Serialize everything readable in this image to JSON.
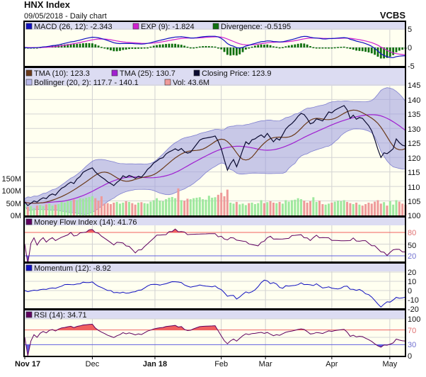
{
  "header": {
    "title": "HNX Index",
    "subtitle": "09/05/2018 - Daily chart",
    "brand": "VCBS"
  },
  "colors": {
    "macd": "#1010c0",
    "exp": "#d020d0",
    "divergence": "#107010",
    "tma10": "#6b3a1a",
    "tma25": "#a020d0",
    "close": "#0a0a30",
    "bollinger": "#9a9ae0",
    "vol_up": "#9ee89e",
    "vol_down": "#ee9a9a",
    "mfi": "#600060",
    "momentum": "#1010c0",
    "rsi": "#600060",
    "overbought": "#f06060",
    "oversold": "#6060e0",
    "band": "#dcdcf2",
    "plot_bg": "#fffff0"
  },
  "legends": {
    "macd": "MACD (26, 12): -2.343",
    "exp": "EXP (9): -1.824",
    "divergence": "Divergence: -0.5195",
    "tma10": "TMA (10): 123.3",
    "tma25": "TMA (25): 130.7",
    "close": "Closing Price: 123.9",
    "bollinger": "Bollinger (20, 2): 117.7 - 140.1",
    "vol": "Vol: 43.6M",
    "mfi": "Money Flow Index (14): 41.76",
    "momentum": "Momentum (12): -8.92",
    "rsi": "RSI (14): 34.71"
  },
  "axes": {
    "macd_ticks": [
      "5",
      "0",
      "-5"
    ],
    "price_ticks": [
      "145",
      "140",
      "135",
      "130",
      "125",
      "120",
      "115",
      "110",
      "105",
      "100"
    ],
    "volume_ticks": [
      "150M",
      "100M",
      "50M",
      "0M"
    ],
    "mfi_ticks": [
      "80",
      "50",
      "20"
    ],
    "momentum_ticks": [
      "20",
      "10",
      "0",
      "-10",
      "-20"
    ],
    "rsi_ticks": [
      "100",
      "70",
      "30",
      "0"
    ],
    "x_ticks": [
      {
        "label": "Nov 17",
        "index": 0,
        "bold": true
      },
      {
        "label": "Dec",
        "index": 22,
        "bold": false
      },
      {
        "label": "Jan 18",
        "index": 42.4,
        "bold": true
      },
      {
        "label": "Feb",
        "index": 64,
        "bold": false
      },
      {
        "label": "Mar",
        "index": 78.4,
        "bold": false
      },
      {
        "label": "Apr",
        "index": 100,
        "bold": false
      },
      {
        "label": "May",
        "index": 118.9,
        "bold": false
      }
    ]
  },
  "chart_data": {
    "type": "line",
    "title": "HNX Index",
    "price_range": [
      100,
      145
    ],
    "volume_range_millions": [
      0,
      150
    ],
    "mfi_levels": [
      80,
      20
    ],
    "rsi_levels": [
      70,
      30
    ],
    "grid": true,
    "close": [
      104.6,
      103.4,
      104.2,
      105.0,
      104.6,
      105.5,
      106.1,
      105.8,
      106.9,
      107.4,
      107.0,
      108.3,
      109.4,
      109.9,
      110.8,
      111.5,
      111.0,
      112.6,
      113.4,
      114.9,
      115.5,
      116.0,
      116.4,
      115.0,
      114.0,
      113.2,
      112.5,
      111.6,
      111.0,
      110.3,
      111.4,
      112.2,
      113.7,
      113.1,
      113.8,
      113.4,
      112.8,
      113.5,
      113.2,
      114.4,
      115.9,
      116.8,
      118.1,
      118.8,
      119.6,
      119.9,
      121.2,
      121.9,
      122.4,
      123.0,
      122.4,
      123.1,
      122.0,
      121.5,
      121.8,
      123.2,
      124.6,
      126.0,
      126.5,
      126.7,
      126.9,
      127.1,
      127.4,
      125.6,
      123.0,
      119.2,
      115.6,
      117.8,
      119.3,
      116.8,
      119.5,
      122.6,
      125.4,
      124.6,
      126.1,
      126.4,
      127.2,
      127.8,
      126.9,
      128.3,
      126.8,
      125.4,
      126.6,
      126.0,
      127.9,
      129.8,
      130.9,
      131.7,
      132.8,
      134.2,
      135.2,
      134.8,
      133.4,
      131.6,
      132.0,
      133.3,
      133.0,
      132.6,
      134.1,
      135.7,
      135.4,
      136.3,
      136.9,
      137.4,
      137.9,
      136.4,
      133.5,
      134.6,
      133.2,
      133.8,
      133.5,
      132.2,
      131.0,
      129.2,
      126.2,
      122.8,
      120.0,
      121.6,
      121.3,
      122.1,
      123.0,
      126.4,
      125.1,
      124.2,
      123.9
    ],
    "volume_millions": [
      45,
      35,
      38,
      30,
      40,
      42,
      38,
      45,
      48,
      40,
      44,
      46,
      55,
      52,
      60,
      58,
      65,
      62,
      70,
      68,
      72,
      75,
      78,
      70,
      60,
      78,
      48,
      50,
      46,
      52,
      55,
      48,
      52,
      58,
      55,
      50,
      44,
      52,
      54,
      50,
      48,
      56,
      62,
      70,
      60,
      58,
      66,
      72,
      75,
      70,
      110,
      62,
      60,
      68,
      66,
      70,
      72,
      74,
      66,
      64,
      80,
      72,
      74,
      84,
      92,
      78,
      105,
      52,
      48,
      55,
      45,
      48,
      42,
      50,
      52,
      46,
      50,
      62,
      50,
      54,
      58,
      52,
      50,
      55,
      48,
      62,
      56,
      62,
      64,
      70,
      66,
      60,
      52,
      58,
      74,
      55,
      60,
      46,
      44,
      48,
      52,
      56,
      60,
      58,
      62,
      55,
      50,
      46,
      52,
      44,
      40,
      46,
      52,
      48,
      56,
      62,
      48,
      54,
      40,
      58,
      44,
      62,
      56,
      48,
      43.6
    ]
  }
}
